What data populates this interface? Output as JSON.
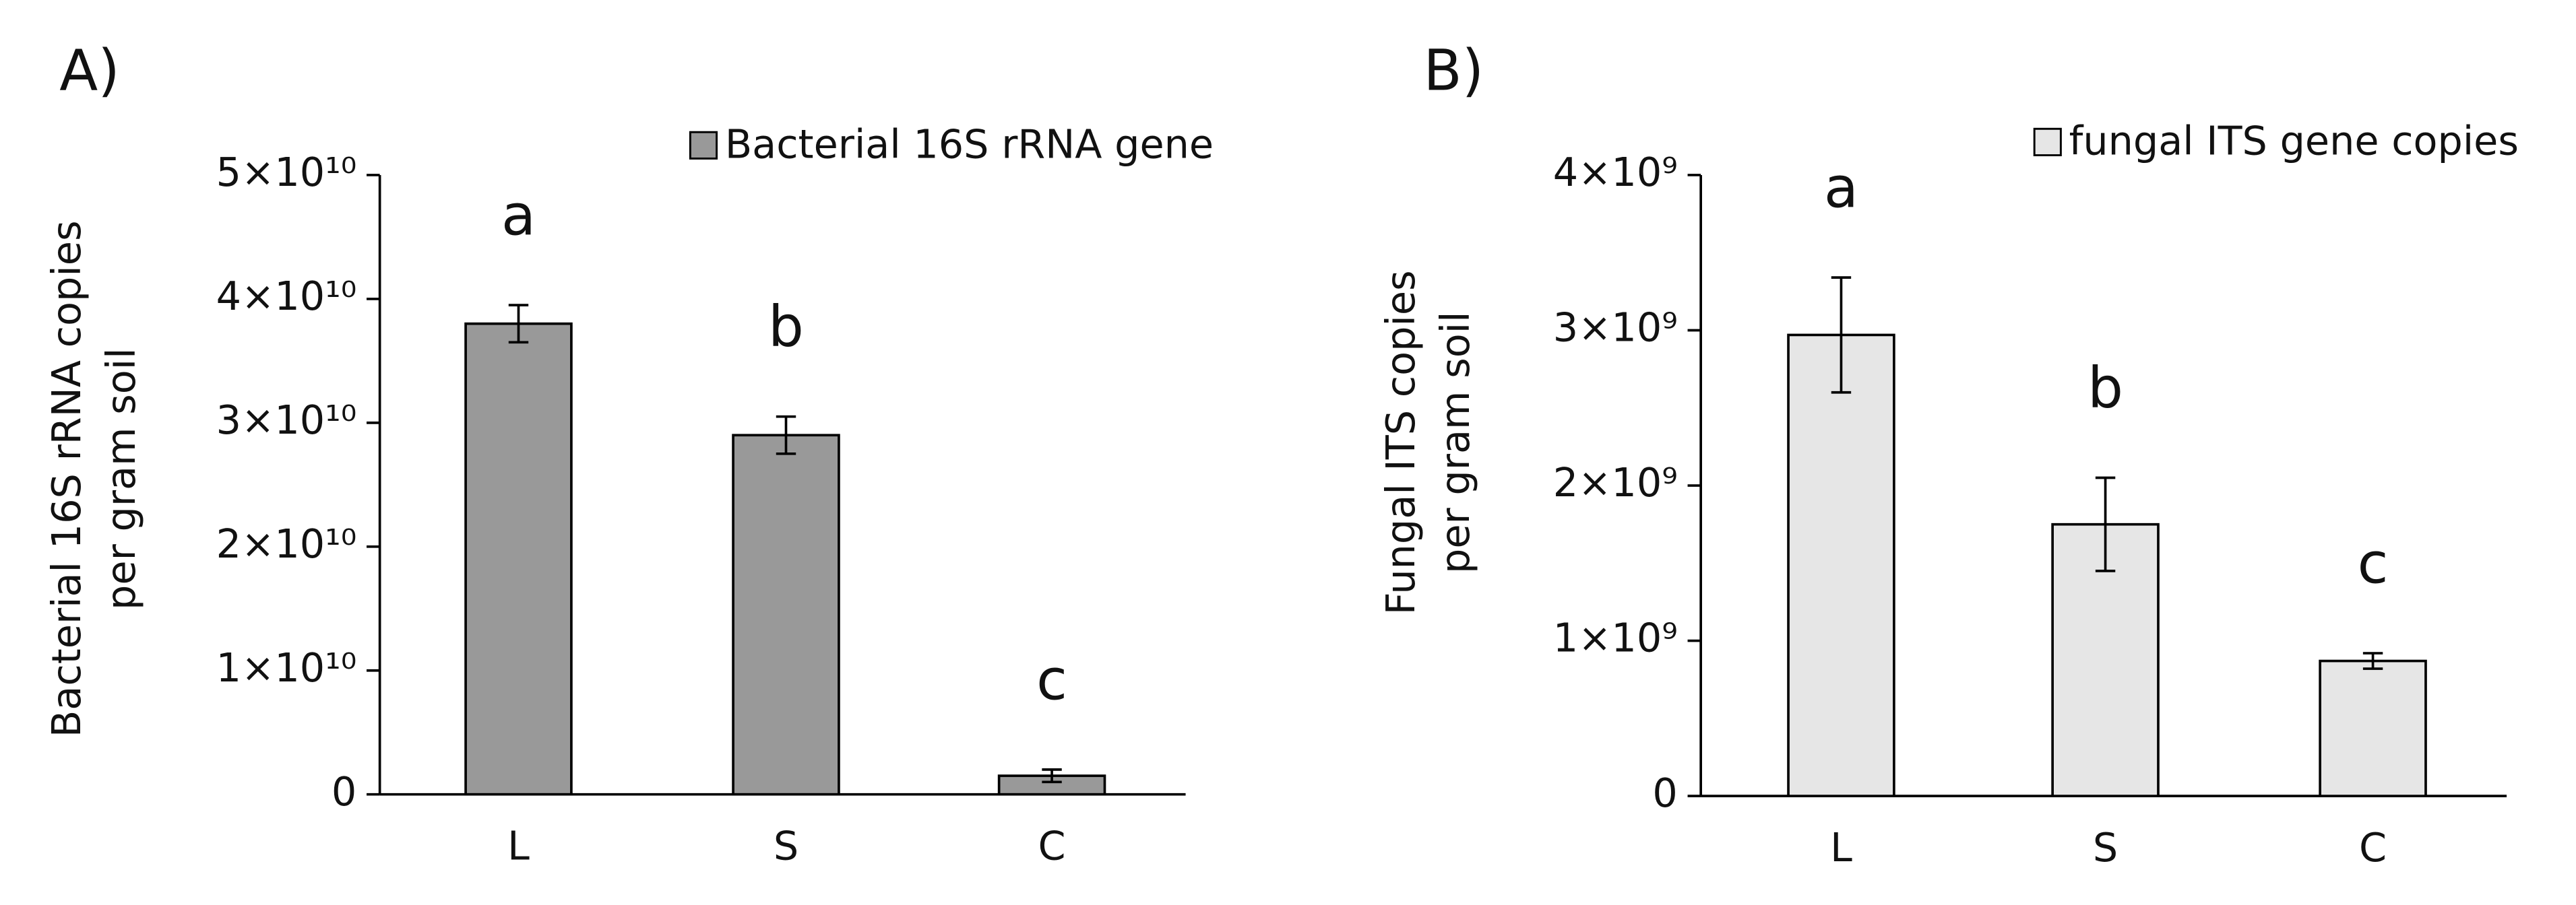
{
  "chart_data": [
    {
      "type": "bar",
      "panel": "A)",
      "ylabel": [
        "Bacterial 16S rRNA  copies",
        "per gram soil"
      ],
      "categories": [
        "L",
        "S",
        "C"
      ],
      "series": [
        {
          "name": "Bacterial 16S rRNA gene",
          "color": "#999999",
          "values": [
            38000000000,
            29000000000,
            1500000000
          ],
          "errors": [
            1500000000,
            1500000000,
            500000000
          ]
        }
      ],
      "annotations": [
        "a",
        "b",
        "c"
      ],
      "ylim": [
        0,
        50000000000
      ],
      "yticks": [
        0,
        {
          "value": 10000000000,
          "label": "1×10¹⁰"
        },
        {
          "value": 20000000000,
          "label": "2×10¹⁰"
        },
        {
          "value": 30000000000,
          "label": "3×10¹⁰"
        },
        {
          "value": 40000000000,
          "label": "4×10¹⁰"
        },
        {
          "value": 50000000000,
          "label": "5×10¹⁰"
        }
      ]
    },
    {
      "type": "bar",
      "panel": "B)",
      "ylabel": [
        "Fungal  ITS  copies",
        "per gram soil"
      ],
      "categories": [
        "L",
        "S",
        "C"
      ],
      "series": [
        {
          "name": "fungal ITS gene copies",
          "color": "#e6e6e6",
          "values": [
            2970000000,
            1750000000,
            870000000
          ],
          "errors": [
            370000000,
            300000000,
            50000000
          ]
        }
      ],
      "annotations": [
        "a",
        "b",
        "c"
      ],
      "ylim": [
        0,
        4000000000
      ],
      "yticks": [
        0,
        {
          "value": 1000000000,
          "label": "1×10⁹"
        },
        {
          "value": 2000000000,
          "label": "2×10⁹"
        },
        {
          "value": 3000000000,
          "label": "3×10⁹"
        },
        {
          "value": 4000000000,
          "label": "4×10⁹"
        }
      ]
    }
  ]
}
